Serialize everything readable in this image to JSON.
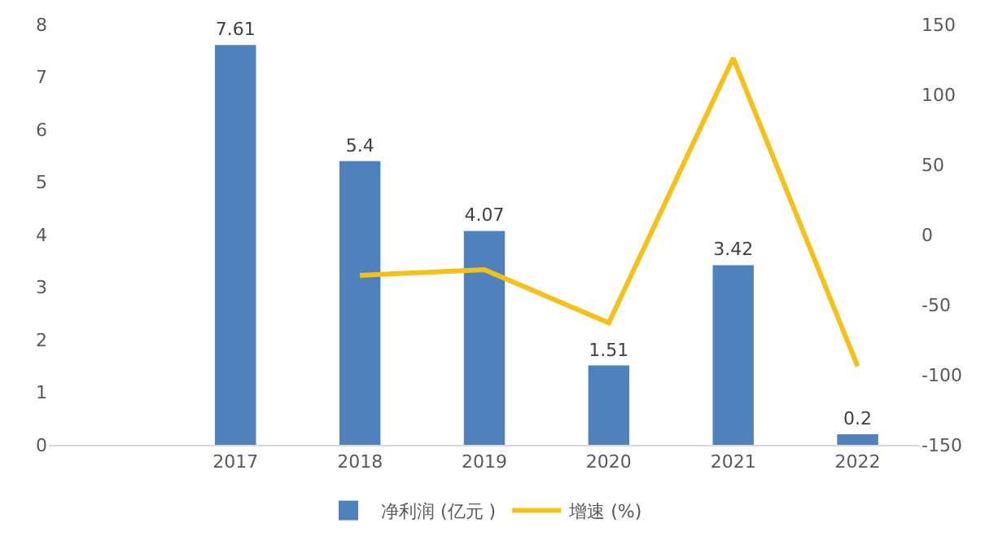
{
  "chart_data": {
    "type": "bar",
    "categories": [
      null,
      "2017",
      "2018",
      "2019",
      "2020",
      "2021",
      "2022"
    ],
    "series": [
      {
        "name": "净利润 (亿元 )",
        "color": "#4f81bd",
        "values": [
          null,
          7.61,
          5.4,
          4.07,
          1.51,
          3.42,
          0.2
        ],
        "value_labels": [
          null,
          "7.61",
          "5.4",
          "4.07",
          "1.51",
          "3.42",
          "0.2"
        ]
      },
      {
        "name": "增速 (%)",
        "type": "line",
        "axis": "y2",
        "color": "#f5c018",
        "values": [
          null,
          null,
          -29,
          -25,
          -63,
          126,
          -94
        ]
      }
    ],
    "ylim": [
      0,
      8
    ],
    "yticks": [
      0,
      1,
      2,
      3,
      4,
      5,
      6,
      7,
      8
    ],
    "y2lim": [
      -150,
      150
    ],
    "y2ticks": [
      -150,
      -100,
      -50,
      0,
      50,
      100,
      150
    ],
    "grid": false,
    "legend": "bottom",
    "marker": "none",
    "line_style": "solid"
  }
}
